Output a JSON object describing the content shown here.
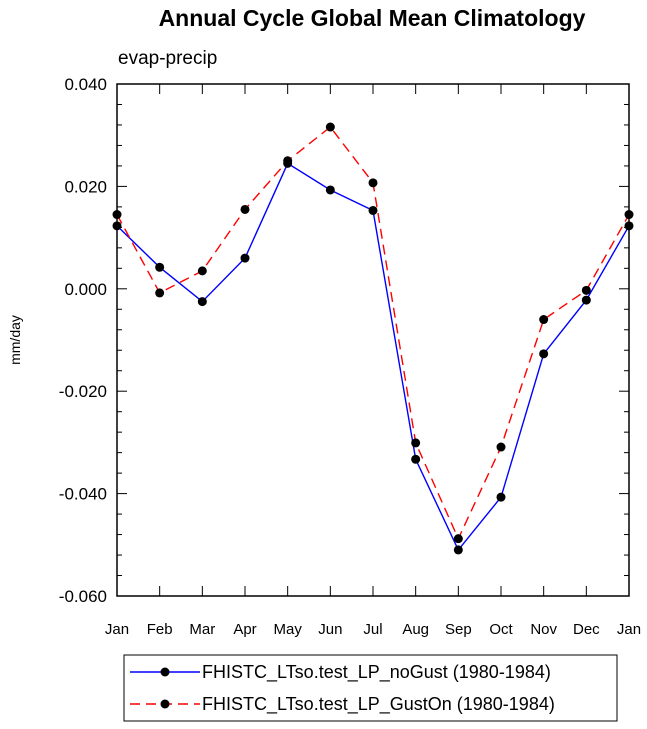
{
  "chart_data": {
    "type": "line",
    "title": "Annual Cycle Global Mean Climatology",
    "subtitle": "evap-precip",
    "ylabel": "mm/day",
    "xlabel": "",
    "categories": [
      "Jan",
      "Feb",
      "Mar",
      "Apr",
      "May",
      "Jun",
      "Jul",
      "Aug",
      "Sep",
      "Oct",
      "Nov",
      "Dec",
      "Jan"
    ],
    "yticks": [
      "0.040",
      "0.020",
      "0.000",
      "-0.020",
      "-0.040",
      "-0.060"
    ],
    "ytick_values": [
      0.04,
      0.02,
      0.0,
      -0.02,
      -0.04,
      -0.06
    ],
    "ylim": [
      -0.06,
      0.04
    ],
    "series": [
      {
        "name": "FHISTC_LTso.test_LP_noGust (1980-1984)",
        "color": "#0000ff",
        "dash": "solid",
        "values": [
          0.0123,
          0.0042,
          -0.0025,
          0.006,
          0.0245,
          0.0193,
          0.0153,
          -0.0333,
          -0.051,
          -0.0407,
          -0.0127,
          -0.0022,
          0.0123
        ]
      },
      {
        "name": "FHISTC_LTso.test_LP_GustOn (1980-1984)",
        "color": "#ff0000",
        "dash": "dashed",
        "values": [
          0.0145,
          -0.0008,
          0.0035,
          0.0155,
          0.025,
          0.0316,
          0.0207,
          -0.0301,
          -0.0488,
          -0.0309,
          -0.006,
          -0.0003,
          0.0145
        ]
      }
    ],
    "legend_position": "bottom"
  }
}
